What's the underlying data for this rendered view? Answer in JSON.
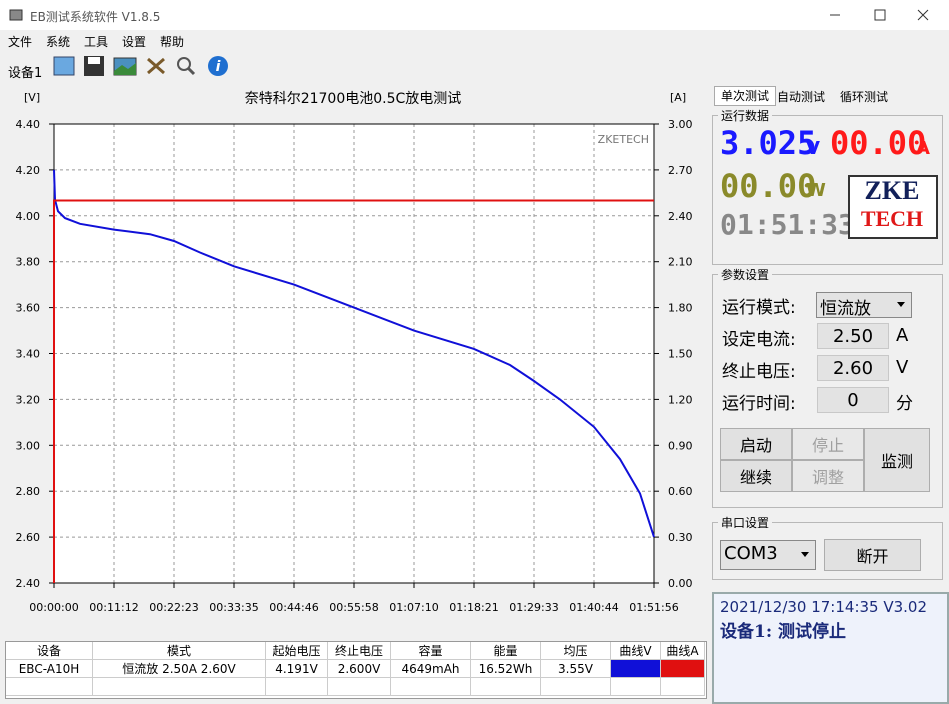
{
  "window": {
    "title": "EB测试系统软件 V1.8.5"
  },
  "menu": [
    "文件",
    "系统",
    "工具",
    "设置",
    "帮助"
  ],
  "toolbar": {
    "device": "设备1"
  },
  "chart_data": {
    "type": "line",
    "title": "奈特科尔21700电池0.5C放电测试",
    "watermark": "ZKETECH",
    "y_label": "[V]",
    "y2_label": "[A]",
    "x": [
      0,
      11,
      45,
      123,
      291,
      672,
      1075,
      1343,
      1634,
      2015,
      2686,
      3358,
      4030,
      4701,
      5104,
      5373,
      5663,
      6044,
      6335,
      6559,
      6716
    ],
    "series": [
      {
        "color": "#1010d8",
        "values": [
          4.2,
          4.07,
          4.02,
          3.99,
          3.965,
          3.94,
          3.92,
          3.89,
          3.84,
          3.78,
          3.7,
          3.6,
          3.5,
          3.42,
          3.35,
          3.28,
          3.2,
          3.08,
          2.94,
          2.79,
          2.6
        ]
      },
      {
        "color": "#e01010",
        "axis": "y2",
        "x": [
          0,
          0,
          6716
        ],
        "values": [
          0,
          2.5,
          2.5
        ]
      }
    ],
    "xlim": [
      0,
      6716
    ],
    "xticks": [
      {
        "value": 0,
        "label": "00:00:00"
      },
      {
        "value": 671.6,
        "label": "00:11:12"
      },
      {
        "value": 1343.2,
        "label": "00:22:23"
      },
      {
        "value": 2014.8,
        "label": "00:33:35"
      },
      {
        "value": 2686.4,
        "label": "00:44:46"
      },
      {
        "value": 3358,
        "label": "00:55:58"
      },
      {
        "value": 4029.6,
        "label": "01:07:10"
      },
      {
        "value": 4701.2,
        "label": "01:18:21"
      },
      {
        "value": 5372.8,
        "label": "01:29:33"
      },
      {
        "value": 6044.4,
        "label": "01:40:44"
      },
      {
        "value": 6716,
        "label": "01:51:56"
      }
    ],
    "ylim": [
      2.4,
      4.4
    ],
    "yticks": [
      {
        "value": 2.4,
        "label": "2.40"
      },
      {
        "value": 2.6,
        "label": "2.60"
      },
      {
        "value": 2.8,
        "label": "2.80"
      },
      {
        "value": 3,
        "label": "3.00"
      },
      {
        "value": 3.2,
        "label": "3.20"
      },
      {
        "value": 3.4,
        "label": "3.40"
      },
      {
        "value": 3.6,
        "label": "3.60"
      },
      {
        "value": 3.8,
        "label": "3.80"
      },
      {
        "value": 4,
        "label": "4.00"
      },
      {
        "value": 4.2,
        "label": "4.20"
      },
      {
        "value": 4.4,
        "label": "4.40"
      }
    ],
    "y2lim": [
      0,
      3
    ],
    "y2ticks": [
      {
        "value": 0,
        "label": "0.00"
      },
      {
        "value": 0.3,
        "label": "0.30"
      },
      {
        "value": 0.6,
        "label": "0.60"
      },
      {
        "value": 0.9,
        "label": "0.90"
      },
      {
        "value": 1.2,
        "label": "1.20"
      },
      {
        "value": 1.5,
        "label": "1.50"
      },
      {
        "value": 1.8,
        "label": "1.80"
      },
      {
        "value": 2.1,
        "label": "2.10"
      },
      {
        "value": 2.4,
        "label": "2.40"
      },
      {
        "value": 2.7,
        "label": "2.70"
      },
      {
        "value": 3,
        "label": "3.00"
      }
    ],
    "grid": true
  },
  "tabs": [
    "单次测试",
    "自动测试",
    "循环测试"
  ],
  "run_data": {
    "title": "运行数据",
    "voltage": "3.025",
    "voltage_unit": "V",
    "current": "00.00",
    "current_unit": "A",
    "power": "00.00",
    "power_unit": "W",
    "time": "01:51:33",
    "logo_top": "ZKE",
    "logo_bottom": "TECH"
  },
  "params": {
    "title": "参数设置",
    "rows": [
      {
        "label": "运行模式:",
        "value": "恒流放"
      },
      {
        "label": "设定电流:",
        "value": "2.50",
        "unit": "A"
      },
      {
        "label": "终止电压:",
        "value": "2.60",
        "unit": "V"
      },
      {
        "label": "运行时间:",
        "value": "0",
        "unit": "分"
      }
    ],
    "buttons": [
      "启动",
      "停止",
      "继续",
      "调整",
      "监测"
    ]
  },
  "serial": {
    "title": "串口设置",
    "port": "COM3",
    "button": "断开"
  },
  "status": {
    "line1": "2021/12/30 17:14:35  V3.02",
    "line2": "设备1: 测试停止"
  },
  "table": {
    "header": [
      "设备",
      "模式",
      "起始电压",
      "终止电压",
      "容量",
      "能量",
      "均压",
      "曲线V",
      "曲线A"
    ],
    "rows": [
      [
        "EBC-A10H",
        "恒流放  2.50A  2.60V",
        "4.191V",
        "2.600V",
        "4649mAh",
        "16.52Wh",
        "3.55V"
      ]
    ]
  }
}
